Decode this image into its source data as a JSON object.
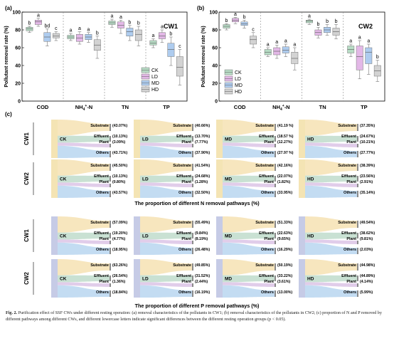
{
  "colors": {
    "CK": "#b7dcc5",
    "LD": "#e3b8e7",
    "MD": "#aeccef",
    "HD": "#d3d3d3",
    "substrate_band": "#f6e2b3",
    "effluent_band": "#bfdccb",
    "plant_band": "#dcc4e6",
    "others_band": "#b9d6f0",
    "n_source": "#f4e4b4",
    "p_source": "#c6cbe6"
  },
  "panel_a": {
    "label": "(a)",
    "tag": "CW1",
    "y_label": "Pollutant removal rate (%)",
    "y_ticks": [
      "0",
      "20",
      "40",
      "60",
      "80",
      "100"
    ],
    "categories": [
      "COD",
      "NH4+-N",
      "TN",
      "TP"
    ],
    "legend": [
      "CK",
      "LD",
      "MD",
      "HD"
    ]
  },
  "panel_b": {
    "label": "(b)",
    "tag": "CW2",
    "y_label": "Pollutant removal rate (%)",
    "y_ticks": [
      "0",
      "20",
      "40",
      "60",
      "80",
      "100"
    ],
    "categories": [
      "COD",
      "NH4+-N",
      "TN",
      "TP"
    ],
    "legend": [
      "CK",
      "LD",
      "MD",
      "HD"
    ]
  },
  "chart_data": [
    {
      "type": "box",
      "panel": "(a)",
      "title": "CW1",
      "ylabel": "Pollutant removal rate (%)",
      "ylim": [
        0,
        100
      ],
      "categories": [
        "COD",
        "NH4+-N",
        "TN",
        "TP"
      ],
      "series_names": [
        "CK",
        "LD",
        "MD",
        "HD"
      ],
      "groups": [
        {
          "category": "COD",
          "boxes": [
            {
              "series": "CK",
              "min": 77,
              "q1": 79,
              "med": 81,
              "q3": 83,
              "max": 84,
              "letter": "b"
            },
            {
              "series": "LD",
              "min": 84,
              "q1": 86,
              "med": 89,
              "q3": 91,
              "max": 93,
              "letter": "a"
            },
            {
              "series": "MD",
              "min": 62,
              "q1": 67,
              "med": 72,
              "q3": 77,
              "max": 81,
              "letter": "bd"
            },
            {
              "series": "HD",
              "min": 68,
              "q1": 71,
              "med": 73,
              "q3": 76,
              "max": 78,
              "letter": "c"
            }
          ]
        },
        {
          "category": "NH4+-N",
          "boxes": [
            {
              "series": "CK",
              "min": 68,
              "q1": 70,
              "med": 72,
              "q3": 74,
              "max": 76,
              "letter": "a"
            },
            {
              "series": "LD",
              "min": 64,
              "q1": 67,
              "med": 71,
              "q3": 75,
              "max": 78,
              "letter": "a"
            },
            {
              "series": "MD",
              "min": 66,
              "q1": 69,
              "med": 72,
              "q3": 75,
              "max": 77,
              "letter": "a"
            },
            {
              "series": "HD",
              "min": 48,
              "q1": 57,
              "med": 63,
              "q3": 69,
              "max": 73,
              "letter": "b"
            }
          ]
        },
        {
          "category": "TN",
          "boxes": [
            {
              "series": "CK",
              "min": 83,
              "q1": 86,
              "med": 88,
              "q3": 90,
              "max": 92,
              "letter": "a"
            },
            {
              "series": "LD",
              "min": 76,
              "q1": 82,
              "med": 85,
              "q3": 89,
              "max": 91,
              "letter": "a"
            },
            {
              "series": "MD",
              "min": 68,
              "q1": 73,
              "med": 78,
              "q3": 82,
              "max": 85,
              "letter": "b"
            },
            {
              "series": "HD",
              "min": 62,
              "q1": 68,
              "med": 75,
              "q3": 80,
              "max": 84,
              "letter": "b"
            }
          ]
        },
        {
          "category": "TP",
          "boxes": [
            {
              "series": "CK",
              "min": 60,
              "q1": 63,
              "med": 65,
              "q3": 68,
              "max": 70,
              "letter": "a"
            },
            {
              "series": "LD",
              "min": 66,
              "q1": 70,
              "med": 73,
              "q3": 77,
              "max": 80,
              "letter": "a"
            },
            {
              "series": "MD",
              "min": 40,
              "q1": 50,
              "med": 58,
              "q3": 65,
              "max": 72,
              "letter": "b"
            },
            {
              "series": "HD",
              "min": 18,
              "q1": 28,
              "med": 38,
              "q3": 50,
              "max": 58,
              "letter": "c"
            }
          ]
        }
      ]
    },
    {
      "type": "box",
      "panel": "(b)",
      "title": "CW2",
      "ylabel": "Pollutant removal rate (%)",
      "ylim": [
        0,
        100
      ],
      "categories": [
        "COD",
        "NH4+-N",
        "TN",
        "TP"
      ],
      "series_names": [
        "CK",
        "LD",
        "MD",
        "HD"
      ],
      "groups": [
        {
          "category": "COD",
          "boxes": [
            {
              "series": "CK",
              "min": 80,
              "q1": 82,
              "med": 84,
              "q3": 86,
              "max": 87,
              "letter": "b"
            },
            {
              "series": "LD",
              "min": 87,
              "q1": 89,
              "med": 91,
              "q3": 93,
              "max": 94,
              "letter": "a"
            },
            {
              "series": "MD",
              "min": 82,
              "q1": 85,
              "med": 87,
              "q3": 89,
              "max": 91,
              "letter": "b"
            },
            {
              "series": "HD",
              "min": 60,
              "q1": 64,
              "med": 69,
              "q3": 73,
              "max": 77,
              "letter": "c"
            }
          ]
        },
        {
          "category": "NH4+-N",
          "boxes": [
            {
              "series": "CK",
              "min": 50,
              "q1": 52,
              "med": 55,
              "q3": 58,
              "max": 60,
              "letter": "a"
            },
            {
              "series": "LD",
              "min": 48,
              "q1": 52,
              "med": 56,
              "q3": 60,
              "max": 63,
              "letter": "a"
            },
            {
              "series": "MD",
              "min": 50,
              "q1": 54,
              "med": 57,
              "q3": 61,
              "max": 64,
              "letter": "a"
            },
            {
              "series": "HD",
              "min": 35,
              "q1": 42,
              "med": 48,
              "q3": 55,
              "max": 60,
              "letter": "a"
            }
          ]
        },
        {
          "category": "TN",
          "boxes": [
            {
              "series": "CK",
              "min": 86,
              "q1": 88,
              "med": 90,
              "q3": 91,
              "max": 92,
              "letter": "a"
            },
            {
              "series": "LD",
              "min": 71,
              "q1": 74,
              "med": 77,
              "q3": 80,
              "max": 83,
              "letter": "b"
            },
            {
              "series": "MD",
              "min": 74,
              "q1": 77,
              "med": 80,
              "q3": 83,
              "max": 86,
              "letter": "b"
            },
            {
              "series": "HD",
              "min": 70,
              "q1": 74,
              "med": 78,
              "q3": 82,
              "max": 86,
              "letter": "b"
            }
          ]
        },
        {
          "category": "TP",
          "boxes": [
            {
              "series": "CK",
              "min": 50,
              "q1": 54,
              "med": 58,
              "q3": 62,
              "max": 64,
              "letter": "a"
            },
            {
              "series": "LD",
              "min": 25,
              "q1": 35,
              "med": 50,
              "q3": 62,
              "max": 68,
              "letter": "a"
            },
            {
              "series": "MD",
              "min": 30,
              "q1": 42,
              "med": 55,
              "q3": 60,
              "max": 64,
              "letter": "a"
            },
            {
              "series": "HD",
              "min": 22,
              "q1": 28,
              "med": 34,
              "q3": 40,
              "max": 46,
              "letter": "b"
            }
          ]
        }
      ]
    }
  ],
  "panel_c": {
    "label": "(c)",
    "n_title": "The proportion of different N removal pathways (%)",
    "p_title": "The proportion of different P removal pathways (%)",
    "pathway_labels": [
      "Substrate",
      "Effluent",
      "Plant",
      "Others"
    ],
    "n_rows": [
      {
        "row": "CW1",
        "items": [
          {
            "group": "CK",
            "values": [
              "(43.07%)",
              "(10.13%)",
              "(3.09%)",
              "(43.71%)"
            ]
          },
          {
            "group": "LD",
            "values": [
              "(40.66%)",
              "(13.70%)",
              "(7.77%)",
              "(37.90%)"
            ]
          },
          {
            "group": "MD",
            "values": [
              "(41.19 %)",
              "(18.57 %)",
              "(12.27%)",
              "(27.97 %)"
            ]
          },
          {
            "group": "HD",
            "values": [
              "(37.35%)",
              "(24.67%)",
              "(10.21%)",
              "(27.77%)"
            ]
          }
        ]
      },
      {
        "row": "CW2",
        "items": [
          {
            "group": "CK",
            "values": [
              "(45.50%)",
              "(10.13%)",
              "(0.80%)",
              "(43.57%)"
            ]
          },
          {
            "group": "LD",
            "values": [
              "(41.54%)",
              "(24.68%)",
              "(1.28%)",
              "(32.50%)"
            ]
          },
          {
            "group": "MD",
            "values": [
              "(42.16%)",
              "(22.07%)",
              "(1.82%)",
              "(33.95%)"
            ]
          },
          {
            "group": "HD",
            "values": [
              "(38.39%)",
              "(23.56%)",
              "(2.91%)",
              "(35.14%)"
            ]
          }
        ]
      }
    ],
    "p_rows": [
      {
        "row": "CW1",
        "items": [
          {
            "group": "CK",
            "values": [
              "(57.09%)",
              "(19.20%)",
              "(4.77%)",
              "(18.95%)"
            ]
          },
          {
            "group": "LD",
            "values": [
              "(55.49%)",
              "(9.84%)",
              "(8.19%)",
              "(26.48%)"
            ]
          },
          {
            "group": "MD",
            "values": [
              "(51.33%)",
              "(22.63%)",
              "(9.65%)",
              "(16.29%)"
            ]
          },
          {
            "group": "HD",
            "values": [
              "(49.54%)",
              "(38.62%)",
              "(9.81%)",
              "(2.03%)"
            ]
          }
        ]
      },
      {
        "row": "CW2",
        "items": [
          {
            "group": "CK",
            "values": [
              "(63.26%)",
              "(26.54%)",
              "(1.36%)",
              "(18.84%)"
            ]
          },
          {
            "group": "LD",
            "values": [
              "(49.85%)",
              "(31.52%)",
              "(2.44%)",
              "(16.19%)"
            ]
          },
          {
            "group": "MD",
            "values": [
              "(50.19%)",
              "(33.22%)",
              "(3.61%)",
              "(13.00%)"
            ]
          },
          {
            "group": "HD",
            "values": [
              "(44.98%)",
              "(44.89%)",
              "(4.14%)",
              "(5.99%)"
            ]
          }
        ]
      }
    ]
  },
  "caption": {
    "fig_label": "Fig. 2.",
    "text": "Purification effect of SSF CWs under different resting operation: (a) removal characteristics of the pollutants in CW1; (b) removal characteristics of the pollutants in CW2; (c) proportion of N and P removed by different pathways among different CWs, and different lowercase letters indicate significant differences between the different resting operation groups (p < 0.05)."
  }
}
